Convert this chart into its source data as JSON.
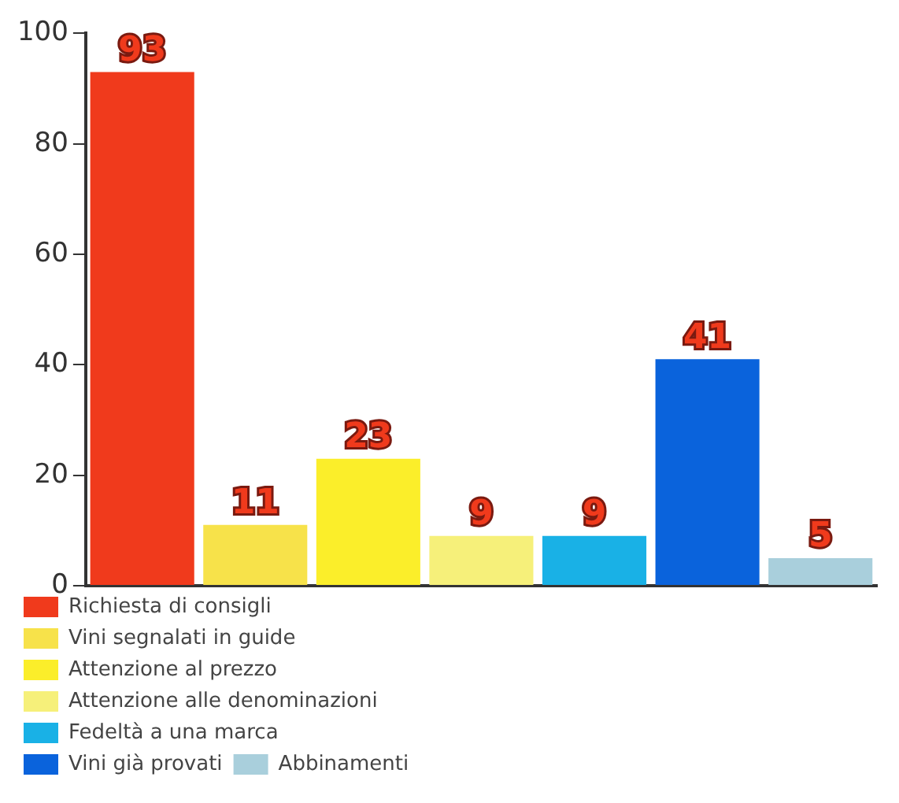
{
  "chart_data": {
    "type": "bar",
    "categories": [
      null,
      null,
      null,
      null,
      null,
      null,
      null
    ],
    "series": [
      {
        "name": "Richiesta di consigli",
        "color": "#f03a1c",
        "values": [
          93,
          null,
          null,
          null,
          null,
          null,
          null
        ]
      },
      {
        "name": "Vini segnalati in guide",
        "color": "#f7e24a",
        "values": [
          null,
          11,
          null,
          null,
          null,
          null,
          null
        ]
      },
      {
        "name": "Attenzione al prezzo",
        "color": "#fbee2a",
        "values": [
          null,
          null,
          23,
          null,
          null,
          null,
          null
        ]
      },
      {
        "name": "Attenzione alle denominazioni",
        "color": "#f6f07a",
        "values": [
          null,
          null,
          null,
          9,
          null,
          null,
          null
        ]
      },
      {
        "name": "Fedeltà a una marca",
        "color": "#19b1e6",
        "values": [
          null,
          null,
          null,
          null,
          9,
          null,
          null
        ]
      },
      {
        "name": "Vini già provati",
        "color": "#0a63dc",
        "values": [
          null,
          null,
          null,
          null,
          null,
          41,
          null
        ]
      },
      {
        "name": "Abbinamenti",
        "color": "#a9cfdc",
        "values": [
          null,
          null,
          null,
          null,
          null,
          null,
          5
        ]
      }
    ],
    "ylim": [
      0,
      100
    ],
    "yticks": [
      0,
      20,
      40,
      60,
      80,
      100
    ],
    "data_labels": true,
    "legend": "bottom",
    "tick_labels": "y",
    "grid": false
  }
}
